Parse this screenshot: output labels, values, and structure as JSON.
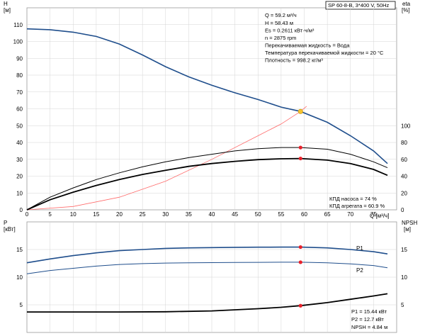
{
  "chart_data": {
    "type": "line",
    "title": "SP 60-8-B, 3*400 V, 50Hz",
    "upper": {
      "y_left_label": "H",
      "y_left_unit": "[м]",
      "y_right_label": "eta",
      "y_right_unit": "[%]",
      "x_label": "Q [м³/ч]",
      "x_ticks": [
        0,
        5,
        10,
        15,
        20,
        25,
        30,
        35,
        40,
        45,
        50,
        55,
        60,
        65,
        70,
        75
      ],
      "y_left_ticks": [
        0,
        10,
        20,
        30,
        40,
        50,
        60,
        70,
        80,
        90,
        100,
        110
      ],
      "y_right_ticks": [
        0,
        20,
        40,
        60,
        80,
        100
      ],
      "xlim": [
        0,
        80
      ],
      "ylim_left": [
        0,
        120
      ],
      "ylim_right": [
        0,
        240
      ],
      "series": [
        {
          "key": "head",
          "color": "#1f4e8c",
          "points": [
            [
              0,
              107.5
            ],
            [
              5,
              107
            ],
            [
              10,
              105.5
            ],
            [
              15,
              103
            ],
            [
              20,
              98.5
            ],
            [
              25,
              92
            ],
            [
              30,
              85
            ],
            [
              35,
              79
            ],
            [
              40,
              74
            ],
            [
              45,
              69.5
            ],
            [
              50,
              65.5
            ],
            [
              55,
              61
            ],
            [
              59.2,
              58.43
            ],
            [
              65,
              52
            ],
            [
              70,
              44
            ],
            [
              75,
              35
            ],
            [
              78,
              27.5
            ]
          ]
        },
        {
          "key": "system",
          "color": "#ff6b6b",
          "points": [
            [
              0,
              0
            ],
            [
              10,
              2
            ],
            [
              20,
              7.5
            ],
            [
              30,
              17
            ],
            [
              40,
              30
            ],
            [
              50,
              44
            ],
            [
              55,
              51
            ],
            [
              59.2,
              58.43
            ],
            [
              60.5,
              61.5
            ]
          ]
        },
        {
          "key": "eta_pump",
          "color": "#000000",
          "points": [
            [
              0,
              0
            ],
            [
              5,
              7.5
            ],
            [
              10,
              13
            ],
            [
              15,
              18
            ],
            [
              20,
              22
            ],
            [
              25,
              25.5
            ],
            [
              30,
              28.5
            ],
            [
              35,
              31
            ],
            [
              40,
              33
            ],
            [
              45,
              35
            ],
            [
              50,
              36.3
            ],
            [
              55,
              37
            ],
            [
              59.2,
              37
            ],
            [
              65,
              36
            ],
            [
              70,
              33
            ],
            [
              75,
              28.5
            ],
            [
              78,
              25
            ]
          ]
        },
        {
          "key": "eta_unit",
          "color": "#000000",
          "points": [
            [
              0,
              0
            ],
            [
              5,
              6
            ],
            [
              10,
              10.5
            ],
            [
              15,
              14.5
            ],
            [
              20,
              18
            ],
            [
              25,
              21
            ],
            [
              30,
              23.5
            ],
            [
              35,
              25.8
            ],
            [
              40,
              27.5
            ],
            [
              45,
              28.8
            ],
            [
              50,
              29.8
            ],
            [
              55,
              30.3
            ],
            [
              59.2,
              30.5
            ],
            [
              65,
              29.5
            ],
            [
              70,
              27.5
            ],
            [
              75,
              24
            ],
            [
              78,
              20.5
            ]
          ]
        }
      ],
      "operating_point": {
        "q": 59.2,
        "h": 58.43
      },
      "markers": [
        {
          "q": 59.2,
          "y": 37
        },
        {
          "q": 59.2,
          "y": 30.5
        }
      ]
    },
    "lower": {
      "y_left_label": "P",
      "y_left_unit": "[кВт]",
      "y_right_label": "NPSH",
      "y_right_unit": "[м]",
      "y_ticks": [
        5,
        10,
        15
      ],
      "xlim": [
        0,
        80
      ],
      "ylim": [
        0,
        20
      ],
      "series": [
        {
          "key": "P1",
          "name": "P1",
          "color": "#1f4e8c",
          "points": [
            [
              0,
              12.6
            ],
            [
              5,
              13.3
            ],
            [
              10,
              13.9
            ],
            [
              15,
              14.4
            ],
            [
              20,
              14.8
            ],
            [
              25,
              15.0
            ],
            [
              30,
              15.2
            ],
            [
              35,
              15.3
            ],
            [
              40,
              15.35
            ],
            [
              45,
              15.4
            ],
            [
              50,
              15.42
            ],
            [
              55,
              15.44
            ],
            [
              59.2,
              15.44
            ],
            [
              65,
              15.3
            ],
            [
              70,
              15.0
            ],
            [
              75,
              14.6
            ],
            [
              78,
              14.2
            ]
          ]
        },
        {
          "key": "P2",
          "name": "P2",
          "color": "#1f4e8c",
          "points": [
            [
              0,
              10.6
            ],
            [
              5,
              11.2
            ],
            [
              10,
              11.6
            ],
            [
              15,
              12.0
            ],
            [
              20,
              12.3
            ],
            [
              25,
              12.45
            ],
            [
              30,
              12.55
            ],
            [
              35,
              12.6
            ],
            [
              40,
              12.63
            ],
            [
              45,
              12.66
            ],
            [
              50,
              12.68
            ],
            [
              55,
              12.7
            ],
            [
              59.2,
              12.7
            ],
            [
              65,
              12.6
            ],
            [
              70,
              12.4
            ],
            [
              75,
              12.1
            ],
            [
              78,
              11.7
            ]
          ]
        },
        {
          "key": "NPSH",
          "name": "",
          "color": "#000000",
          "points": [
            [
              0,
              3.7
            ],
            [
              10,
              3.7
            ],
            [
              20,
              3.7
            ],
            [
              30,
              3.75
            ],
            [
              40,
              3.9
            ],
            [
              50,
              4.3
            ],
            [
              55,
              4.55
            ],
            [
              59.2,
              4.84
            ],
            [
              65,
              5.4
            ],
            [
              70,
              6.0
            ],
            [
              75,
              6.6
            ],
            [
              78,
              7.0
            ]
          ]
        }
      ],
      "markers": [
        {
          "q": 59.2,
          "y": 15.44
        },
        {
          "q": 59.2,
          "y": 12.7
        },
        {
          "q": 59.2,
          "y": 4.84
        }
      ]
    },
    "info_lines": [
      "Q = 59.2 м³/ч",
      "H = 58.43 м",
      "Es = 0.2611 кВт·ч/м³",
      "n = 2875 rpm",
      "Перекачиваемая жидкость = Вода",
      "Температура перекачиваемой жидкости = 20 °C",
      "Плотность = 998.2 кг/м³"
    ],
    "eta_lines": [
      "КПД насоса = 74 %",
      "КПД агрегата = 60.9 %"
    ],
    "bottom_lines": [
      "P1 = 15.44 кВт",
      "P2 = 12.7 кВт",
      "NPSH = 4.84 м"
    ]
  }
}
